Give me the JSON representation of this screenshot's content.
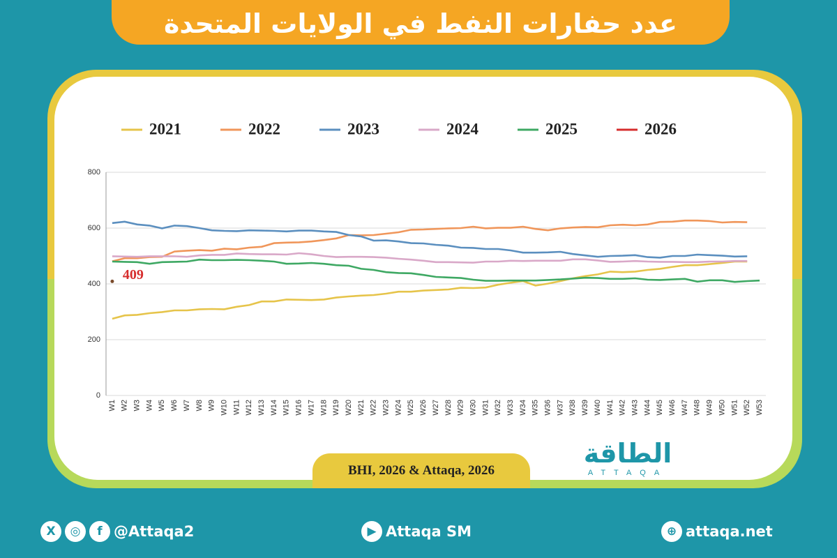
{
  "header": {
    "title": "عدد حفارات النفط في الولايات المتحدة"
  },
  "chart_data": {
    "type": "line",
    "categories": [
      "W1",
      "W2",
      "W3",
      "W4",
      "W5",
      "W6",
      "W7",
      "W8",
      "W9",
      "W10",
      "W11",
      "W12",
      "W13",
      "W14",
      "W15",
      "W16",
      "W17",
      "W18",
      "W19",
      "W20",
      "W21",
      "W22",
      "W23",
      "W24",
      "W25",
      "W26",
      "W27",
      "W28",
      "W29",
      "W30",
      "W31",
      "W32",
      "W33",
      "W34",
      "W35",
      "W36",
      "W37",
      "W38",
      "W39",
      "W40",
      "W41",
      "W42",
      "W43",
      "W44",
      "W45",
      "W46",
      "W47",
      "W48",
      "W49",
      "W50",
      "W51",
      "W52",
      "W53"
    ],
    "series": [
      {
        "name": "2021",
        "color": "#e6c44a",
        "values": [
          275,
          287,
          289,
          295,
          299,
          305,
          305,
          309,
          310,
          309,
          318,
          324,
          337,
          337,
          344,
          343,
          342,
          344,
          351,
          355,
          358,
          360,
          365,
          372,
          372,
          376,
          378,
          380,
          386,
          385,
          387,
          397,
          404,
          410,
          394,
          401,
          410,
          420,
          428,
          434,
          444,
          442,
          444,
          450,
          454,
          461,
          467,
          467,
          471,
          475,
          480,
          480,
          null
        ]
      },
      {
        "name": "2022",
        "color": "#f0965a",
        "values": [
          481,
          492,
          492,
          496,
          497,
          516,
          519,
          521,
          519,
          526,
          524,
          530,
          533,
          546,
          548,
          549,
          552,
          557,
          563,
          575,
          574,
          575,
          580,
          585,
          594,
          595,
          597,
          599,
          600,
          605,
          599,
          601,
          601,
          605,
          597,
          592,
          599,
          602,
          604,
          603,
          610,
          612,
          610,
          613,
          622,
          623,
          627,
          627,
          625,
          620,
          622,
          621,
          null
        ]
      },
      {
        "name": "2023",
        "color": "#5b8fbf",
        "values": [
          618,
          623,
          613,
          609,
          599,
          609,
          607,
          600,
          592,
          590,
          589,
          592,
          591,
          590,
          588,
          591,
          591,
          588,
          586,
          575,
          570,
          555,
          556,
          552,
          546,
          545,
          540,
          537,
          530,
          529,
          525,
          525,
          520,
          512,
          512,
          513,
          515,
          507,
          502,
          497,
          500,
          501,
          503,
          496,
          494,
          500,
          500,
          505,
          503,
          501,
          498,
          499,
          null
        ]
      },
      {
        "name": "2024",
        "color": "#d9a8c8",
        "values": [
          499,
          498,
          497,
          499,
          499,
          499,
          497,
          502,
          504,
          504,
          509,
          507,
          506,
          506,
          505,
          510,
          506,
          500,
          496,
          497,
          497,
          496,
          494,
          490,
          487,
          483,
          478,
          478,
          477,
          476,
          480,
          480,
          483,
          482,
          483,
          483,
          483,
          488,
          488,
          484,
          479,
          480,
          482,
          480,
          479,
          479,
          478,
          478,
          480,
          480,
          482,
          482,
          null
        ]
      },
      {
        "name": "2025",
        "color": "#3ea863",
        "values": [
          480,
          479,
          478,
          472,
          478,
          479,
          480,
          487,
          485,
          485,
          486,
          485,
          483,
          480,
          472,
          473,
          475,
          472,
          467,
          465,
          454,
          450,
          442,
          439,
          438,
          432,
          425,
          423,
          421,
          415,
          411,
          411,
          412,
          412,
          412,
          414,
          416,
          419,
          422,
          421,
          418,
          418,
          420,
          415,
          414,
          416,
          418,
          408,
          413,
          413,
          407,
          410,
          412
        ]
      },
      {
        "name": "2026",
        "color": "#d62d2d",
        "marker_color": "#7a4a2a",
        "values": [
          409,
          null,
          null,
          null,
          null,
          null,
          null,
          null,
          null,
          null,
          null,
          null,
          null,
          null,
          null,
          null,
          null,
          null,
          null,
          null,
          null,
          null,
          null,
          null,
          null,
          null,
          null,
          null,
          null,
          null,
          null,
          null,
          null,
          null,
          null,
          null,
          null,
          null,
          null,
          null,
          null,
          null,
          null,
          null,
          null,
          null,
          null,
          null,
          null,
          null,
          null,
          null,
          null
        ]
      }
    ],
    "ylim": [
      0,
      800
    ],
    "yticks": [
      0,
      200,
      400,
      600,
      800
    ],
    "grid": true,
    "legend": "top"
  },
  "source": "BHI, 2026 & Attaqa, 2026",
  "logo": {
    "name": "الطاقة",
    "latin": "ATTAQA"
  },
  "footer": {
    "social": "@Attaqa2",
    "youtube": "Attaqa SM",
    "web": "attaqa.net"
  }
}
